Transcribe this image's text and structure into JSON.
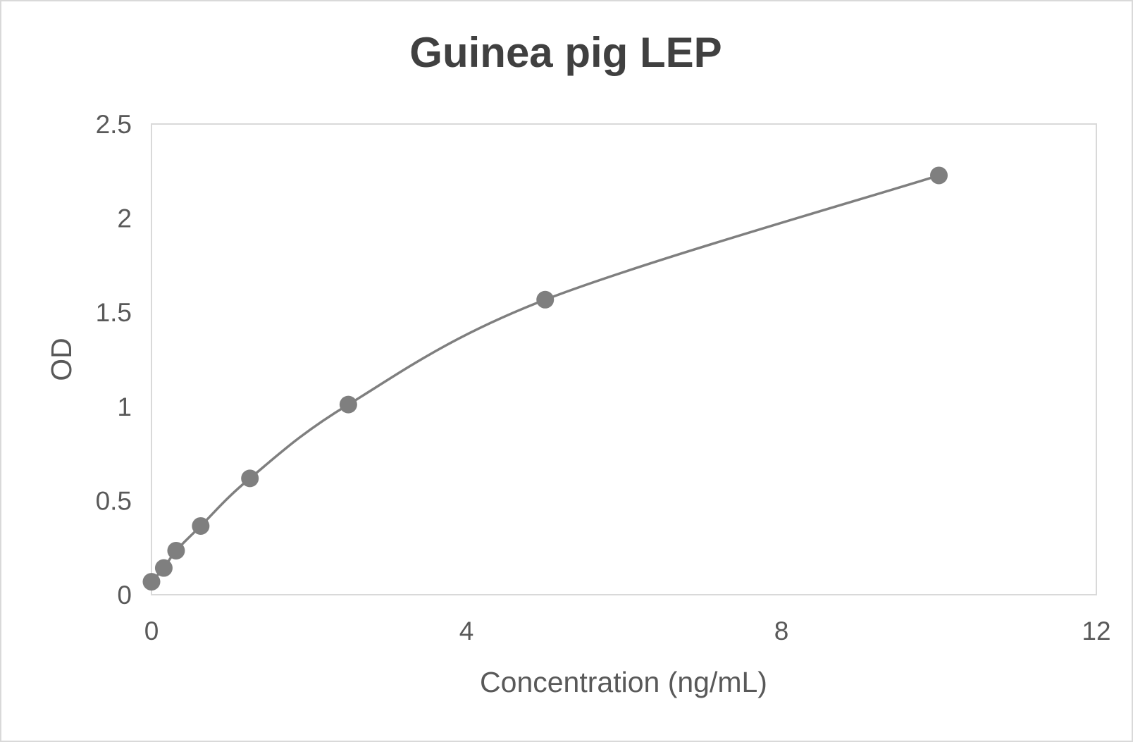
{
  "chart_data": {
    "type": "scatter",
    "title": "Guinea pig LEP",
    "xlabel": "Concentration (ng/mL)",
    "ylabel": "OD",
    "xlim": [
      0,
      12
    ],
    "ylim": [
      0,
      2.5
    ],
    "xticks": [
      "0",
      "4",
      "8",
      "12"
    ],
    "yticks": [
      "0",
      "0.5",
      "1",
      "1.5",
      "2",
      "2.5"
    ],
    "grid": false,
    "legend": "none",
    "smoothed_line": true,
    "series": [
      {
        "x": [
          0,
          0.156,
          0.3125,
          0.625,
          1.25,
          2.5,
          5,
          10
        ],
        "y": [
          0.069,
          0.142,
          0.234,
          0.365,
          0.618,
          1.01,
          1.567,
          2.227
        ]
      }
    ],
    "colors": {
      "series": "#7f7f7f",
      "axis": "#d9d9d9",
      "text": "#595959",
      "title": "#404040"
    }
  }
}
